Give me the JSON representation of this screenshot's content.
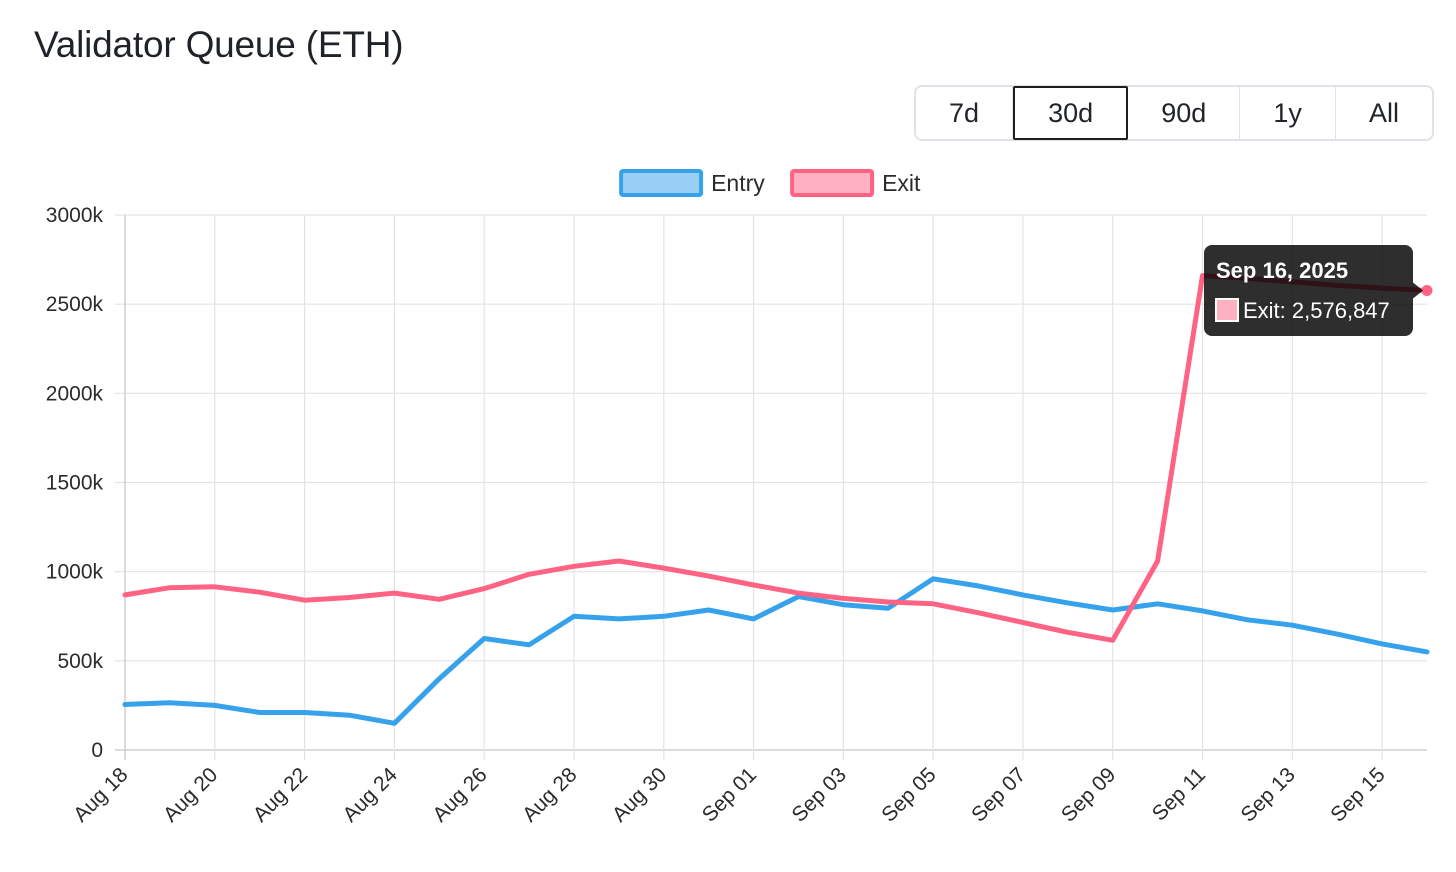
{
  "page": {
    "title": "Validator Queue (ETH)"
  },
  "range_selector": {
    "options": [
      "7d",
      "30d",
      "90d",
      "1y",
      "All"
    ],
    "active": "30d"
  },
  "tooltip": {
    "title": "Sep 16, 2025",
    "label": "Exit: 2,576,847",
    "color": "#ffb1c1"
  },
  "chart_data": {
    "type": "line",
    "title": "",
    "xlabel": "",
    "ylabel": "",
    "legend_position": "top",
    "grid": true,
    "ylim": [
      0,
      3000000
    ],
    "y_ticks": [
      "0",
      "500k",
      "1000k",
      "1500k",
      "2000k",
      "2500k",
      "3000k"
    ],
    "x": [
      "Aug 18",
      "Aug 19",
      "Aug 20",
      "Aug 21",
      "Aug 22",
      "Aug 23",
      "Aug 24",
      "Aug 25",
      "Aug 26",
      "Aug 27",
      "Aug 28",
      "Aug 29",
      "Aug 30",
      "Aug 31",
      "Sep 01",
      "Sep 02",
      "Sep 03",
      "Sep 04",
      "Sep 05",
      "Sep 06",
      "Sep 07",
      "Sep 08",
      "Sep 09",
      "Sep 10",
      "Sep 11",
      "Sep 12",
      "Sep 13",
      "Sep 14",
      "Sep 15",
      "Sep 16"
    ],
    "x_tick_labels": [
      "Aug 18",
      "Aug 20",
      "Aug 22",
      "Aug 24",
      "Aug 26",
      "Aug 28",
      "Aug 30",
      "Sep 01",
      "Sep 03",
      "Sep 05",
      "Sep 07",
      "Sep 09",
      "Sep 11",
      "Sep 13",
      "Sep 15"
    ],
    "series": [
      {
        "name": "Entry",
        "color": "#36a2eb",
        "fill": "#9ad0f5",
        "values": [
          255000,
          265000,
          250000,
          210000,
          210000,
          195000,
          150000,
          400000,
          625000,
          590000,
          750000,
          735000,
          750000,
          785000,
          735000,
          860000,
          815000,
          795000,
          960000,
          920000,
          870000,
          825000,
          785000,
          820000,
          780000,
          730000,
          700000,
          650000,
          595000,
          550000
        ]
      },
      {
        "name": "Exit",
        "color": "#ff6384",
        "fill": "#ffb1c1",
        "values": [
          870000,
          910000,
          915000,
          885000,
          840000,
          855000,
          880000,
          845000,
          905000,
          985000,
          1030000,
          1060000,
          1020000,
          975000,
          925000,
          880000,
          850000,
          830000,
          820000,
          770000,
          715000,
          660000,
          615000,
          1060000,
          2660000,
          2645000,
          2625000,
          2605000,
          2590000,
          2576847
        ]
      }
    ]
  }
}
